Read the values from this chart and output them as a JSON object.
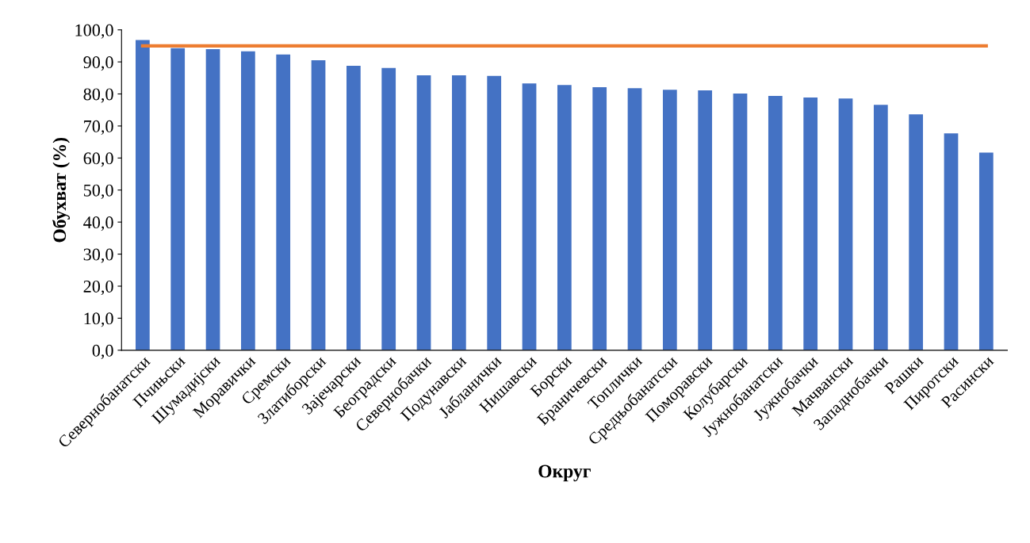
{
  "chart_data": {
    "type": "bar",
    "xlabel": "Округ",
    "ylabel": "Обухват (%)",
    "categories": [
      "Севернобанатски",
      "Пчињски",
      "Шумадијски",
      "Моравички",
      "Сремски",
      "Златиборски",
      "Зајечарски",
      "Београдски",
      "Севернобачки",
      "Подунавски",
      "Јабланички",
      "Нишавски",
      "Борски",
      "Браничевски",
      "Топлички",
      "Средњобанатски",
      "Поморавски",
      "Колубарски",
      "Јужнобанатски",
      "Јужнобачки",
      "Мачвански",
      "Западнобачки",
      "Рашки",
      "Пиротски",
      "Расински"
    ],
    "values": [
      96.8,
      94.3,
      94.0,
      93.3,
      92.3,
      90.5,
      88.8,
      88.1,
      85.8,
      85.8,
      85.6,
      83.3,
      82.8,
      82.1,
      81.8,
      81.3,
      81.1,
      80.1,
      79.4,
      78.9,
      78.6,
      76.6,
      73.6,
      67.7,
      61.7
    ],
    "color": "#4472c4",
    "ylim": [
      0,
      100
    ],
    "yticks": [
      {
        "value": 0,
        "label": "0,0"
      },
      {
        "value": 10,
        "label": "10,0"
      },
      {
        "value": 20,
        "label": "20,0"
      },
      {
        "value": 30,
        "label": "30,0"
      },
      {
        "value": 40,
        "label": "40,0"
      },
      {
        "value": 50,
        "label": "50,0"
      },
      {
        "value": 60,
        "label": "60,0"
      },
      {
        "value": 70,
        "label": "70,0"
      },
      {
        "value": 80,
        "label": "80,0"
      },
      {
        "value": 90,
        "label": "90,0"
      },
      {
        "value": 100,
        "label": "100,0"
      }
    ],
    "ref_lines": [
      {
        "axis": "y",
        "value": 95,
        "color": "#ed7d31"
      }
    ],
    "grid": false,
    "legend": false
  }
}
